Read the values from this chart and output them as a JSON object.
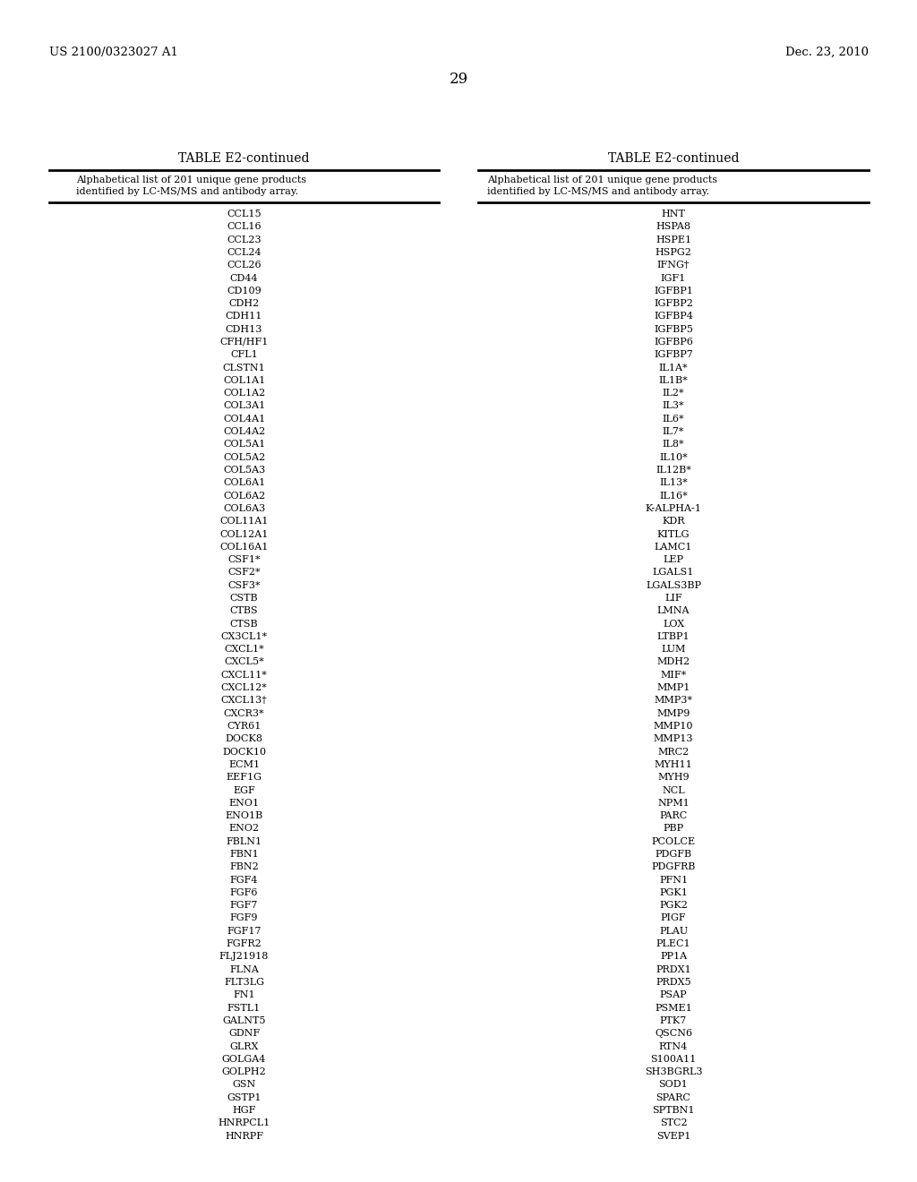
{
  "page_number": "29",
  "patent_left": "US 2100/0323027 A1",
  "patent_right": "Dec. 23, 2010",
  "table_title": "TABLE E2-continued",
  "col_header_line1": "Alphabetical list of 201 unique gene products",
  "col_header_line2": "identified by LC-MS/MS and antibody array.",
  "left_col": [
    "CCL15",
    "CCL16",
    "CCL23",
    "CCL24",
    "CCL26",
    "CD44",
    "CD109",
    "CDH2",
    "CDH11",
    "CDH13",
    "CFH/HF1",
    "CFL1",
    "CLSTN1",
    "COL1A1",
    "COL1A2",
    "COL3A1",
    "COL4A1",
    "COL4A2",
    "COL5A1",
    "COL5A2",
    "COL5A3",
    "COL6A1",
    "COL6A2",
    "COL6A3",
    "COL11A1",
    "COL12A1",
    "COL16A1",
    "CSF1*",
    "CSF2*",
    "CSF3*",
    "CSTB",
    "CTBS",
    "CTSB",
    "CX3CL1*",
    "CXCL1*",
    "CXCL5*",
    "CXCL11*",
    "CXCL12*",
    "CXCL13†",
    "CXCR3*",
    "CYR61",
    "DOCK8",
    "DOCK10",
    "ECM1",
    "EEF1G",
    "EGF",
    "ENO1",
    "ENO1B",
    "ENO2",
    "FBLN1",
    "FBN1",
    "FBN2",
    "FGF4",
    "FGF6",
    "FGF7",
    "FGF9",
    "FGF17",
    "FGFR2",
    "FLJ21918",
    "FLNA",
    "FLT3LG",
    "FN1",
    "FSTL1",
    "GALNT5",
    "GDNF",
    "GLRX",
    "GOLGA4",
    "GOLPH2",
    "GSN",
    "GSTP1",
    "HGF",
    "HNRPCL1",
    "HNRPF"
  ],
  "right_col": [
    "HNT",
    "HSPA8",
    "HSPE1",
    "HSPG2",
    "IFNG†",
    "IGF1",
    "IGFBP1",
    "IGFBP2",
    "IGFBP4",
    "IGFBP5",
    "IGFBP6",
    "IGFBP7",
    "IL1A*",
    "IL1B*",
    "IL2*",
    "IL3*",
    "IL6*",
    "IL7*",
    "IL8*",
    "IL10*",
    "IL12B*",
    "IL13*",
    "IL16*",
    "K-ALPHA-1",
    "KDR",
    "KITLG",
    "LAMC1",
    "LEP",
    "LGALS1",
    "LGALS3BP",
    "LIF",
    "LMNA",
    "LOX",
    "LTBP1",
    "LUM",
    "MDH2",
    "MIF*",
    "MMP1",
    "MMP3*",
    "MMP9",
    "MMP10",
    "MMP13",
    "MRC2",
    "MYH11",
    "MYH9",
    "NCL",
    "NPM1",
    "PARC",
    "PBP",
    "PCOLCE",
    "PDGFB",
    "PDGFRB",
    "PFN1",
    "PGK1",
    "PGK2",
    "PIGF",
    "PLAU",
    "PLEC1",
    "PP1A",
    "PRDX1",
    "PRDX5",
    "PSAP",
    "PSME1",
    "PTK7",
    "QSCN6",
    "RTN4",
    "S100A11",
    "SH3BGRL3",
    "SOD1",
    "SPARC",
    "SPTBN1",
    "STC2",
    "SVEP1"
  ],
  "bg_color": "#ffffff",
  "text_color": "#000000"
}
